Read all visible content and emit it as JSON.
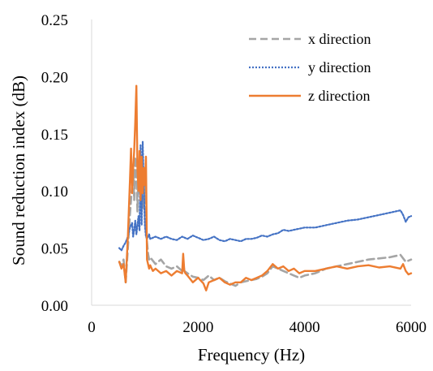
{
  "chart_data": {
    "type": "line",
    "xlabel": "Frequency (Hz)",
    "ylabel": "Sound reduction index (dB)",
    "xlim": [
      0,
      6000
    ],
    "ylim": [
      0,
      0.25
    ],
    "xticks": [
      0,
      2000,
      4000,
      6000
    ],
    "xtick_labels": [
      "0",
      "2000",
      "4000",
      "6000"
    ],
    "yticks": [
      0,
      0.05,
      0.1,
      0.15,
      0.2,
      0.25
    ],
    "ytick_labels": [
      "0.00",
      "0.05",
      "0.10",
      "0.15",
      "0.20",
      "0.25"
    ],
    "grid": false,
    "legend_position": "top-right",
    "series": [
      {
        "name": "x direction",
        "color": "#a5a5a5",
        "style": "dashed",
        "x": [
          520,
          560,
          600,
          640,
          680,
          720,
          760,
          780,
          800,
          820,
          840,
          860,
          880,
          900,
          920,
          940,
          960,
          980,
          1000,
          1020,
          1040,
          1060,
          1080,
          1100,
          1200,
          1300,
          1400,
          1500,
          1600,
          1700,
          1720,
          1740,
          1800,
          1900,
          2000,
          2100,
          2200,
          2300,
          2400,
          2500,
          2600,
          2700,
          2800,
          2900,
          3000,
          3100,
          3200,
          3300,
          3400,
          3500,
          3600,
          3700,
          3800,
          3900,
          4000,
          4200,
          4400,
          4600,
          4800,
          5000,
          5200,
          5400,
          5600,
          5800,
          5900,
          6000
        ],
        "y": [
          0.038,
          0.034,
          0.04,
          0.02,
          0.05,
          0.08,
          0.105,
          0.12,
          0.092,
          0.13,
          0.118,
          0.082,
          0.125,
          0.1,
          0.095,
          0.12,
          0.085,
          0.09,
          0.105,
          0.07,
          0.055,
          0.045,
          0.04,
          0.042,
          0.036,
          0.04,
          0.034,
          0.032,
          0.034,
          0.03,
          0.038,
          0.03,
          0.028,
          0.025,
          0.024,
          0.022,
          0.026,
          0.022,
          0.024,
          0.021,
          0.019,
          0.017,
          0.02,
          0.021,
          0.022,
          0.023,
          0.025,
          0.028,
          0.034,
          0.032,
          0.03,
          0.028,
          0.026,
          0.024,
          0.026,
          0.028,
          0.032,
          0.034,
          0.036,
          0.038,
          0.04,
          0.041,
          0.042,
          0.044,
          0.038,
          0.04
        ]
      },
      {
        "name": "y direction",
        "color": "#4472c4",
        "style": "dotted",
        "x": [
          520,
          560,
          600,
          640,
          680,
          720,
          760,
          780,
          800,
          820,
          840,
          860,
          880,
          900,
          920,
          940,
          960,
          980,
          1000,
          1020,
          1040,
          1060,
          1080,
          1100,
          1200,
          1300,
          1400,
          1500,
          1600,
          1700,
          1800,
          1900,
          2000,
          2100,
          2200,
          2300,
          2400,
          2500,
          2600,
          2700,
          2800,
          2900,
          3000,
          3100,
          3200,
          3300,
          3400,
          3500,
          3600,
          3700,
          3800,
          3900,
          4000,
          4200,
          4400,
          4600,
          4800,
          5000,
          5200,
          5400,
          5600,
          5800,
          5850,
          5900,
          5950,
          6000
        ],
        "y": [
          0.05,
          0.048,
          0.052,
          0.055,
          0.06,
          0.068,
          0.072,
          0.06,
          0.066,
          0.074,
          0.062,
          0.07,
          0.078,
          0.065,
          0.14,
          0.07,
          0.143,
          0.1,
          0.07,
          0.06,
          0.058,
          0.06,
          0.062,
          0.058,
          0.06,
          0.058,
          0.06,
          0.058,
          0.057,
          0.06,
          0.058,
          0.061,
          0.059,
          0.057,
          0.058,
          0.06,
          0.057,
          0.056,
          0.058,
          0.057,
          0.056,
          0.058,
          0.058,
          0.059,
          0.061,
          0.06,
          0.062,
          0.063,
          0.066,
          0.065,
          0.066,
          0.067,
          0.068,
          0.068,
          0.07,
          0.072,
          0.074,
          0.075,
          0.077,
          0.079,
          0.081,
          0.083,
          0.079,
          0.073,
          0.077,
          0.078
        ]
      },
      {
        "name": "z direction",
        "color": "#ed7d31",
        "style": "solid",
        "x": [
          520,
          560,
          600,
          640,
          680,
          720,
          740,
          760,
          780,
          800,
          820,
          840,
          860,
          880,
          900,
          920,
          940,
          960,
          980,
          1000,
          1020,
          1040,
          1060,
          1080,
          1100,
          1150,
          1200,
          1300,
          1400,
          1500,
          1600,
          1700,
          1720,
          1740,
          1760,
          1800,
          1900,
          2000,
          2100,
          2150,
          2200,
          2300,
          2400,
          2500,
          2600,
          2700,
          2800,
          2900,
          3000,
          3100,
          3200,
          3300,
          3400,
          3500,
          3600,
          3700,
          3800,
          3900,
          4000,
          4200,
          4400,
          4600,
          4800,
          5000,
          5200,
          5400,
          5600,
          5800,
          5850,
          5900,
          5950,
          6000
        ],
        "y": [
          0.038,
          0.032,
          0.036,
          0.02,
          0.06,
          0.11,
          0.137,
          0.098,
          0.12,
          0.135,
          0.16,
          0.192,
          0.12,
          0.1,
          0.135,
          0.092,
          0.13,
          0.098,
          0.12,
          0.105,
          0.13,
          0.04,
          0.036,
          0.032,
          0.035,
          0.03,
          0.032,
          0.028,
          0.03,
          0.026,
          0.03,
          0.028,
          0.045,
          0.03,
          0.028,
          0.026,
          0.02,
          0.024,
          0.019,
          0.013,
          0.02,
          0.022,
          0.024,
          0.02,
          0.018,
          0.02,
          0.02,
          0.024,
          0.022,
          0.024,
          0.026,
          0.03,
          0.036,
          0.032,
          0.034,
          0.03,
          0.032,
          0.028,
          0.03,
          0.03,
          0.032,
          0.034,
          0.032,
          0.034,
          0.035,
          0.033,
          0.034,
          0.032,
          0.036,
          0.03,
          0.027,
          0.028
        ]
      }
    ]
  }
}
